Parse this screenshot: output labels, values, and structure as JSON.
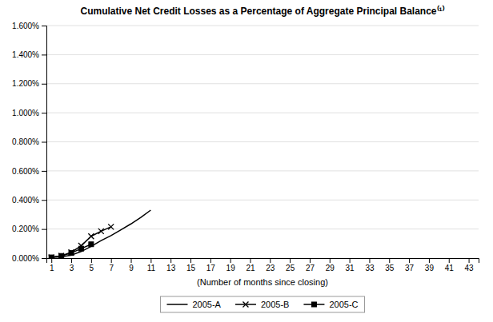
{
  "chart_data": {
    "type": "line",
    "title": "Cumulative Net Credit Losses as a Percentage of Aggregate Principal Balance⁽¹⁾",
    "x_label": "(Number of months since closing)",
    "series": [
      {
        "name": "2005-A",
        "color": "#000000",
        "marker": "none",
        "x": [
          1,
          2,
          3,
          4,
          5,
          6,
          7,
          8,
          9,
          10,
          11
        ],
        "values": [
          5e-05,
          8e-05,
          0.0002,
          0.00045,
          0.0008,
          0.0012,
          0.00155,
          0.00195,
          0.00235,
          0.0028,
          0.0033
        ]
      },
      {
        "name": "2005-B",
        "color": "#000000",
        "marker": "x",
        "x": [
          1,
          2,
          3,
          4,
          5,
          6,
          7
        ],
        "values": [
          5e-05,
          0.00015,
          0.0004,
          0.00085,
          0.0015,
          0.00185,
          0.00215
        ]
      },
      {
        "name": "2005-C",
        "color": "#000000",
        "marker": "square",
        "x": [
          1,
          2,
          3,
          4,
          5
        ],
        "values": [
          5e-05,
          0.00015,
          0.00035,
          0.00065,
          0.00095
        ]
      }
    ],
    "xlim": [
      0.5,
      44
    ],
    "ylim": [
      0.0,
      0.016
    ],
    "xticks": [
      1,
      3,
      5,
      7,
      9,
      11,
      13,
      15,
      17,
      19,
      21,
      23,
      25,
      27,
      29,
      31,
      33,
      35,
      37,
      39,
      41,
      43
    ],
    "yticks": [
      {
        "value": 0.0,
        "label": "0.000%"
      },
      {
        "value": 0.002,
        "label": "0.200%"
      },
      {
        "value": 0.004,
        "label": "0.400%"
      },
      {
        "value": 0.006,
        "label": "0.600%"
      },
      {
        "value": 0.008,
        "label": "0.800%"
      },
      {
        "value": 0.01,
        "label": "1.000%"
      },
      {
        "value": 0.012,
        "label": "1.200%"
      },
      {
        "value": 0.014,
        "label": "1.400%"
      },
      {
        "value": 0.016,
        "label": "1.600%"
      }
    ],
    "grid": "y",
    "legend": "bottom"
  }
}
